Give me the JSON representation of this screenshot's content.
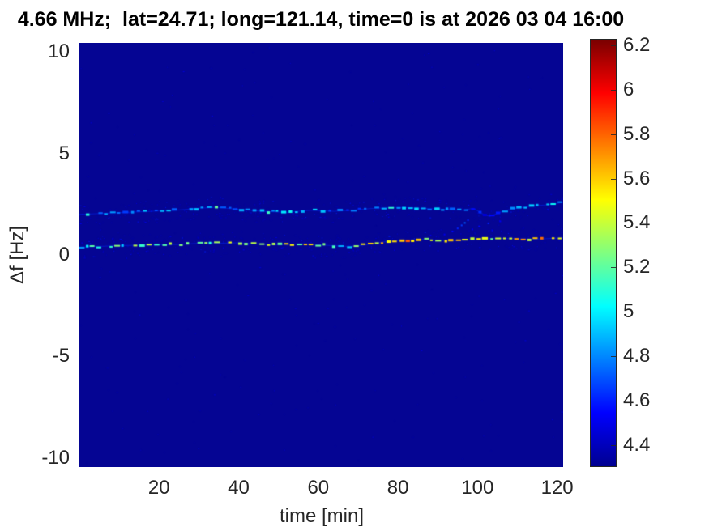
{
  "chart_data": {
    "type": "heatmap",
    "title": "4.66 MHz;  lat=24.71; long=121.14, time=0 is at 2026 03 04 16:00",
    "xlabel": "time [min]",
    "ylabel": "Δf [Hz]",
    "xlim": [
      0,
      121.5
    ],
    "ylim": [
      -10.45,
      10.45
    ],
    "grid": false,
    "xticks": {
      "values": [
        20,
        40,
        60,
        80,
        100,
        120
      ],
      "labels": [
        "20",
        "40",
        "60",
        "80",
        "100",
        "120"
      ]
    },
    "yticks": {
      "values": [
        10,
        5,
        0,
        -5,
        -10
      ],
      "labels": [
        "10",
        "5",
        "0",
        "-5",
        "-10"
      ]
    },
    "background_value": 4.33,
    "background_color": "#050593",
    "colormap": "jet",
    "colorbar": {
      "min": 4.3,
      "max": 6.23,
      "tick_values": [
        6.2,
        6,
        5.8,
        5.6,
        5.4,
        5.2,
        5,
        4.8,
        4.6,
        4.4
      ],
      "tick_labels": [
        "6.2",
        "6",
        "5.8",
        "5.6",
        "5.4",
        "5.2",
        "5",
        "4.8",
        "4.6",
        "4.4"
      ],
      "gradient_stops": [
        {
          "color": "#7a0000",
          "pos": 0
        },
        {
          "color": "#ff0000",
          "pos": 12.5
        },
        {
          "color": "#ffff00",
          "pos": 37.5
        },
        {
          "color": "#00ffff",
          "pos": 62.5
        },
        {
          "color": "#0000ff",
          "pos": 87.5
        },
        {
          "color": "#000090",
          "pos": 100
        }
      ]
    },
    "series": [
      {
        "name": "upper-doppler-trace",
        "style": "dashed-speckle",
        "v_jitter": 0.28,
        "points": [
          [
            0,
            2.0,
            4.7
          ],
          [
            6,
            2.05,
            4.72
          ],
          [
            12,
            2.1,
            4.75
          ],
          [
            18,
            2.15,
            4.78
          ],
          [
            24,
            2.2,
            4.82
          ],
          [
            30,
            2.3,
            4.85
          ],
          [
            34,
            2.35,
            4.85
          ],
          [
            40,
            2.25,
            4.8
          ],
          [
            46,
            2.15,
            4.85
          ],
          [
            52,
            2.1,
            4.98
          ],
          [
            58,
            2.2,
            4.95
          ],
          [
            64,
            2.15,
            4.7
          ],
          [
            68,
            2.2,
            4.65
          ],
          [
            74,
            2.3,
            4.85
          ],
          [
            80,
            2.35,
            4.92
          ],
          [
            86,
            2.3,
            4.9
          ],
          [
            92,
            2.25,
            4.8
          ],
          [
            96,
            2.2,
            4.7
          ],
          [
            99,
            2.3,
            4.6
          ],
          [
            101,
            2.05,
            4.6
          ],
          [
            103,
            1.9,
            4.6
          ],
          [
            105,
            2.05,
            4.65
          ],
          [
            107,
            2.2,
            4.75
          ],
          [
            110,
            2.3,
            4.85
          ],
          [
            113,
            2.4,
            4.92
          ],
          [
            116,
            2.45,
            4.95
          ],
          [
            119,
            2.5,
            4.9
          ],
          [
            121.5,
            2.6,
            4.9
          ]
        ]
      },
      {
        "name": "lower-doppler-trace",
        "style": "dashed-speckle",
        "v_jitter": 0.5,
        "points": [
          [
            0,
            0.38,
            5.0
          ],
          [
            5,
            0.42,
            5.0
          ],
          [
            10,
            0.46,
            5.05
          ],
          [
            15,
            0.48,
            5.15
          ],
          [
            20,
            0.5,
            5.2
          ],
          [
            25,
            0.52,
            5.35
          ],
          [
            28,
            0.55,
            5.5
          ],
          [
            32,
            0.6,
            5.3
          ],
          [
            36,
            0.58,
            5.2
          ],
          [
            40,
            0.6,
            5.25
          ],
          [
            44,
            0.55,
            5.3
          ],
          [
            48,
            0.5,
            5.2
          ],
          [
            52,
            0.52,
            5.35
          ],
          [
            56,
            0.55,
            5.4
          ],
          [
            60,
            0.5,
            5.3
          ],
          [
            64,
            0.45,
            5.1
          ],
          [
            68,
            0.42,
            5.05
          ],
          [
            70,
            0.45,
            5.25
          ],
          [
            72,
            0.5,
            5.45
          ],
          [
            75,
            0.6,
            5.5
          ],
          [
            78,
            0.68,
            5.45
          ],
          [
            82,
            0.72,
            5.4
          ],
          [
            86,
            0.78,
            5.5
          ],
          [
            90,
            0.72,
            5.5
          ],
          [
            94,
            0.7,
            5.45
          ],
          [
            98,
            0.75,
            5.4
          ],
          [
            102,
            0.8,
            5.45
          ],
          [
            106,
            0.82,
            5.4
          ],
          [
            110,
            0.8,
            5.45
          ],
          [
            114,
            0.78,
            5.5
          ],
          [
            117,
            0.8,
            5.6
          ],
          [
            121.5,
            0.85,
            5.7
          ]
        ]
      }
    ],
    "scatter_points": [
      [
        91.5,
        1.05,
        4.5
      ],
      [
        93.5,
        1.2,
        4.55
      ],
      [
        94.8,
        1.35,
        4.6
      ],
      [
        95.8,
        1.5,
        4.65
      ],
      [
        96.6,
        1.62,
        4.72
      ],
      [
        97.4,
        1.75,
        4.6
      ],
      [
        98.5,
        1.3,
        4.5
      ],
      [
        100.2,
        1.45,
        4.55
      ],
      [
        102.5,
        1.6,
        4.6
      ],
      [
        103.5,
        1.25,
        4.5
      ],
      [
        105.5,
        1.7,
        4.5
      ],
      [
        88.0,
        1.0,
        4.48
      ]
    ]
  }
}
